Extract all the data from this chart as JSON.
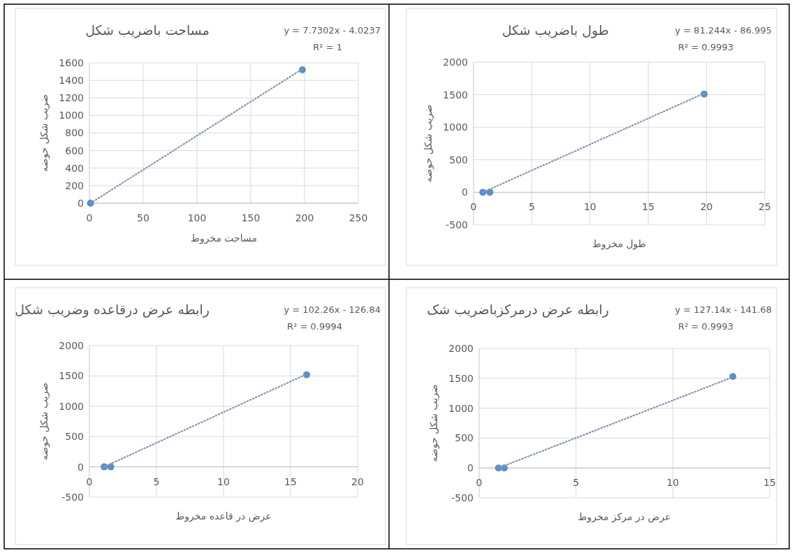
{
  "chart_data": [
    {
      "type": "scatter",
      "title": "مساحت باضریب شکل",
      "xlabel": "مساحت مخروط",
      "ylabel": "ضریب شکل حوضه",
      "annotations": [
        "y = 7.7302x - 4.0237",
        "R² = 1"
      ],
      "xlim": [
        0,
        250
      ],
      "xticks": [
        0,
        50,
        100,
        150,
        200,
        250
      ],
      "ylim": [
        0,
        1600
      ],
      "yticks": [
        0,
        200,
        400,
        600,
        800,
        1000,
        1200,
        1400,
        1600
      ],
      "grid": true,
      "marker": "circle",
      "series": [
        {
          "color": "#5b8fc9",
          "x": [
            1,
            198
          ],
          "values": [
            0,
            1520
          ]
        },
        {
          "type": "line",
          "color": "#8497b0",
          "line_style": "dotted",
          "marker": "none",
          "x": [
            1,
            198
          ],
          "values": [
            0,
            1530
          ]
        }
      ]
    },
    {
      "type": "scatter",
      "title": "طول باضریب شکل",
      "xlabel": "طول مخروط",
      "ylabel": "ضریب شکل حوضه",
      "annotations": [
        "y = 81.244x - 86.995",
        "R² = 0.9993"
      ],
      "xlim": [
        0,
        25
      ],
      "xticks": [
        0,
        5,
        10,
        15,
        20,
        25
      ],
      "ylim": [
        -500,
        2000
      ],
      "yticks": [
        -500,
        0,
        500,
        1000,
        1500,
        2000
      ],
      "grid": true,
      "marker": "circle",
      "series": [
        {
          "color": "#5b8fc9",
          "x": [
            0.8,
            1.4,
            19.8
          ],
          "values": [
            0,
            0,
            1510
          ]
        },
        {
          "type": "line",
          "color": "#8497b0",
          "line_style": "dotted",
          "marker": "none",
          "x": [
            0.8,
            19.8
          ],
          "values": [
            0,
            1520
          ]
        }
      ]
    },
    {
      "type": "scatter",
      "title": "رابطه عرض درقاعده وضریب شکل",
      "xlabel": "عرض در قاعده مخروط",
      "ylabel": "ضریب شکل حوضه",
      "annotations": [
        "y = 102.26x - 126.84",
        "R² = 0.9994"
      ],
      "xlim": [
        0,
        20
      ],
      "xticks": [
        0,
        5,
        10,
        15,
        20
      ],
      "ylim": [
        -500,
        2000
      ],
      "yticks": [
        -500,
        0,
        500,
        1000,
        1500,
        2000
      ],
      "grid": true,
      "marker": "circle",
      "series": [
        {
          "color": "#5b8fc9",
          "x": [
            1.1,
            1.6,
            16.2
          ],
          "values": [
            0,
            0,
            1520
          ]
        },
        {
          "type": "line",
          "color": "#8497b0",
          "line_style": "dotted",
          "marker": "none",
          "x": [
            1.1,
            16.2
          ],
          "values": [
            0,
            1530
          ]
        }
      ]
    },
    {
      "type": "scatter",
      "title": "رابطه عرض درمرکزباضریب شک",
      "xlabel": "عرض در مرکز مخروط",
      "ylabel": "ضریب شکل حوضه",
      "annotations": [
        "y = 127.14x - 141.68",
        "R² = 0.9993"
      ],
      "xlim": [
        0,
        15
      ],
      "xticks": [
        0,
        5,
        10,
        15
      ],
      "ylim": [
        -500,
        2000
      ],
      "yticks": [
        -500,
        0,
        500,
        1000,
        1500,
        2000
      ],
      "grid": true,
      "marker": "circle",
      "series": [
        {
          "color": "#5b8fc9",
          "x": [
            1,
            1.3,
            13.1
          ],
          "values": [
            0,
            0,
            1530
          ]
        },
        {
          "type": "line",
          "color": "#8497b0",
          "line_style": "dotted",
          "marker": "none",
          "x": [
            1,
            13.1
          ],
          "values": [
            0,
            1520
          ]
        }
      ]
    }
  ]
}
